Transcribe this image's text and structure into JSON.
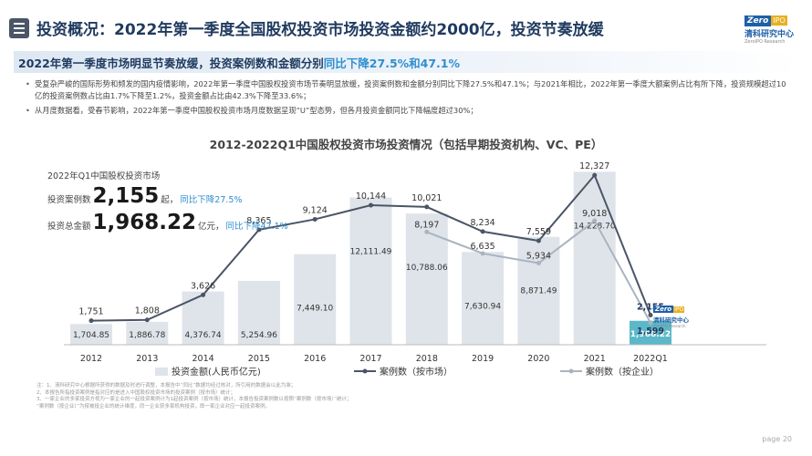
{
  "header": {
    "title": "投资概况：2022年第一季度全国股权投资市场投资金额约2000亿，投资节奏放缓",
    "logo_brand": "Zero",
    "logo_badge": "IPO",
    "logo_cn": "清科研究中心",
    "logo_en": "ZeroIPO Research"
  },
  "subtitle": {
    "prefix": "2022年第一季度市场明显节奏放缓，投资案例数和金额分别",
    "highlight": "同比下降27.5%和47.1%"
  },
  "bullets": [
    "受复杂严峻的国际形势和频发的国内疫情影响，2022年第一季度中国股权投资市场节奏明显放缓，投资案例数和金额分别同比下降27.5%和47.1%；与2021年相比，2022年第一季度大额案例占比有所下降，投资规模超过10亿的投资案例数占比由1.7%下降至1.2%，投资金额占比由42.3%下降至33.6%；",
    "从月度数据看，受春节影响，2022年第一季度中国股权投资市场月度数据呈现“U”型态势，但各月投资金额同比下降幅度超过30%；"
  ],
  "summary": {
    "title": "2022年Q1中国股权投资市场",
    "cases_label": "投资案例数",
    "cases_value": "2,155",
    "cases_unit": "起，",
    "cases_change": "同比下降27.5%",
    "amount_label": "投资总金额",
    "amount_value": "1,968.22",
    "amount_unit": "亿元，",
    "amount_change": "同比下降47.1%"
  },
  "notes": [
    "注：1、清科研究中心根据所获得的数据及时进行调整，本报告中“同比”数据均经过核对，所引用的数据会以此为准；",
    "2、本报告所指投资案例是指对应的是进入中国股权投资市场的投资案例（按市场）统计；",
    "3、一家企业的多家投资方视为一家企业的一起投资案例计为1起投资案例（按市场）统计，本报告投资案例数以按照“案例数（按市场）”统计；",
    "“案例数（按企业）”为按被投企业的统计维度，同一企业获多家机构投资，即一家企业对应一起投资案例。"
  ],
  "page_number": "page 20",
  "colors": {
    "bar": "#dfe4ea",
    "bar_highlight": "#5bb8c8",
    "line_market": "#4a5566",
    "line_company": "#aab4c0",
    "accent": "#2e8fd0",
    "title": "#1f3a5f"
  },
  "chart_data": {
    "type": "bar",
    "title": "2012-2022Q1中国股权投资市场投资情况（包括早期投资机构、VC、PE）",
    "categories": [
      "2012",
      "2013",
      "2014",
      "2015",
      "2016",
      "2017",
      "2018",
      "2019",
      "2020",
      "2021",
      "2022Q1"
    ],
    "bar_series": {
      "name": "投资金额(人民币亿元)",
      "values": [
        1704.85,
        1886.78,
        4376.74,
        5254.96,
        7449.1,
        12111.49,
        10788.06,
        7630.94,
        8871.49,
        14228.7,
        1968.22
      ],
      "labels": [
        "1,704.85",
        "1,886.78",
        "4,376.74",
        "5,254.96",
        "7,449.10",
        "12,111.49",
        "10,788.06",
        "7,630.94",
        "8,871.49",
        "14,228.70",
        "1,968.22"
      ]
    },
    "line_series": [
      {
        "name": "案例数（按市场）",
        "values": [
          1751,
          1808,
          3626,
          8365,
          9124,
          10144,
          10021,
          8234,
          7559,
          12327,
          2155
        ],
        "labels": [
          "1,751",
          "1,808",
          "3,626",
          "8,365",
          "9,124",
          "10,144",
          "10,021",
          "8,234",
          "7,559",
          "12,327",
          "2,155"
        ]
      },
      {
        "name": "案例数（按企业）",
        "years": [
          "2018",
          "2019",
          "2020",
          "2021",
          "2022Q1"
        ],
        "values": [
          8197,
          6635,
          5934,
          9018,
          1599
        ],
        "labels": [
          "8,197",
          "6,635",
          "5,934",
          "9,018",
          "1,599"
        ]
      }
    ],
    "legend": [
      "投资金额(人民币亿元)",
      "案例数（按市场）",
      "案例数（按企业）"
    ],
    "legend_position": "bottom",
    "grid": false
  }
}
